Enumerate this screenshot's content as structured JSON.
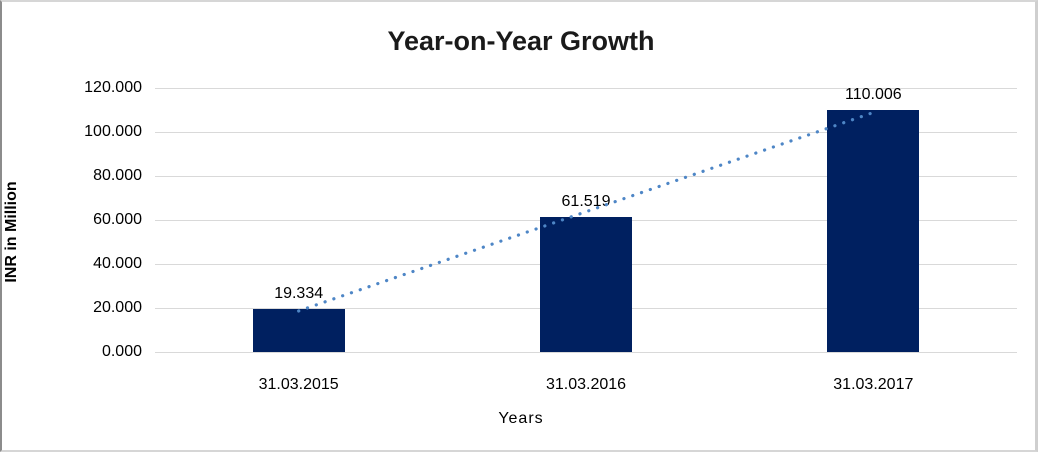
{
  "chart_data": {
    "type": "bar",
    "title": "Year-on-Year Growth",
    "xlabel": "Years",
    "ylabel": "INR in Million",
    "categories": [
      "31.03.2015",
      "31.03.2016",
      "31.03.2017"
    ],
    "values": [
      19.334,
      61.519,
      110.006
    ],
    "data_labels": [
      "19.334",
      "61.519",
      "110.006"
    ],
    "ylim": [
      0,
      120
    ],
    "ytick_interval": 20,
    "ytick_labels": [
      "0.000",
      "20.000",
      "40.000",
      "60.000",
      "80.000",
      "100.000",
      "120.000"
    ],
    "grid": true,
    "legend": false,
    "bar_color": "#002060",
    "gridline_color": "#d9d9d9",
    "trendline": {
      "type": "linear",
      "style": "dotted",
      "color": "#4e86c6"
    },
    "background": "#ffffff"
  }
}
